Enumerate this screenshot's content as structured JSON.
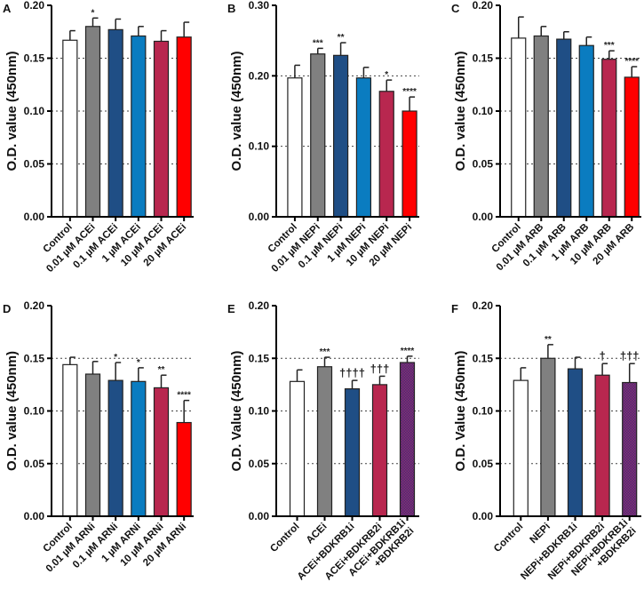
{
  "chart_data": [
    {
      "type": "bar",
      "panel": "A",
      "ylabel": "O.D. value (450nm)",
      "ylim": [
        0,
        0.2
      ],
      "yticks": [
        "0.00",
        "0.05",
        "0.10",
        "0.15",
        "0.20"
      ],
      "grid_at": [
        0.05,
        0.1,
        0.15
      ],
      "categories": [
        "Control",
        "0.01 µM ACEi",
        "0.1 µM ACEi",
        "1 µM ACEi",
        "10 µM ACEi",
        "20 µM ACEi"
      ],
      "values": [
        0.167,
        0.18,
        0.177,
        0.171,
        0.166,
        0.17
      ],
      "error_upper": [
        0.176,
        0.188,
        0.187,
        0.18,
        0.176,
        0.184
      ],
      "annotations": [
        "",
        "*",
        "",
        "",
        "",
        ""
      ]
    },
    {
      "type": "bar",
      "panel": "B",
      "ylabel": "O.D. value (450nm)",
      "ylim": [
        0,
        0.3
      ],
      "yticks": [
        "0.00",
        "0.10",
        "0.20",
        "0.30"
      ],
      "grid_at": [
        0.1,
        0.2
      ],
      "categories": [
        "Control",
        "0.01 µM NEPi",
        "0.1 µM NEPi",
        "1 µM NEPi",
        "10 µM NEPi",
        "20 µM NEPi"
      ],
      "values": [
        0.197,
        0.231,
        0.229,
        0.197,
        0.178,
        0.15
      ],
      "error_upper": [
        0.215,
        0.239,
        0.247,
        0.212,
        0.194,
        0.17
      ],
      "annotations": [
        "",
        "***",
        "**",
        "",
        "*",
        "****"
      ]
    },
    {
      "type": "bar",
      "panel": "C",
      "ylabel": "O.D. value (450nm)",
      "ylim": [
        0,
        0.2
      ],
      "yticks": [
        "0.00",
        "0.05",
        "0.10",
        "0.15",
        "0.20"
      ],
      "grid_at": [
        0.05,
        0.1,
        0.15
      ],
      "categories": [
        "Control",
        "0.01 µM ARB",
        "0.1 µM ARB",
        "1 µM ARB",
        "10 µM ARB",
        "20 µM ARB"
      ],
      "values": [
        0.169,
        0.171,
        0.168,
        0.162,
        0.149,
        0.132
      ],
      "error_upper": [
        0.189,
        0.18,
        0.175,
        0.17,
        0.157,
        0.142
      ],
      "annotations": [
        "",
        "",
        "",
        "",
        "***",
        "****"
      ]
    },
    {
      "type": "bar",
      "panel": "D",
      "ylabel": "O.D. value (450nm)",
      "ylim": [
        0,
        0.2
      ],
      "yticks": [
        "0.00",
        "0.05",
        "0.10",
        "0.15",
        "0.20"
      ],
      "grid_at": [
        0.05,
        0.1,
        0.15
      ],
      "categories": [
        "Control",
        "0.01 µM ARNi",
        "0.1 µM ARNi",
        "1 µM ARNi",
        "10 µM ARNi",
        "20 µM ARNi"
      ],
      "values": [
        0.144,
        0.135,
        0.129,
        0.128,
        0.122,
        0.089
      ],
      "error_upper": [
        0.151,
        0.147,
        0.146,
        0.141,
        0.134,
        0.11
      ],
      "annotations": [
        "",
        "",
        "*",
        "*",
        "**",
        "****"
      ]
    },
    {
      "type": "bar",
      "panel": "E",
      "ylabel": "O.D. Value (450nm)",
      "ylim": [
        0,
        0.2
      ],
      "yticks": [
        "0.00",
        "0.05",
        "0.10",
        "0.15",
        "0.20"
      ],
      "grid_at": [
        0.05,
        0.1,
        0.15
      ],
      "categories": [
        "Control",
        "ACEi",
        "ACEi+BDKRB1i",
        "ACEi+BDKRB2i",
        "ACEi+BDKRB1i\n+BDKRB2i"
      ],
      "values": [
        0.128,
        0.142,
        0.121,
        0.125,
        0.146
      ],
      "error_upper": [
        0.139,
        0.151,
        0.129,
        0.133,
        0.152
      ],
      "annotations": [
        "",
        "***",
        "††††",
        "†††",
        "****"
      ]
    },
    {
      "type": "bar",
      "panel": "F",
      "ylabel": "O.D. Value (450nm)",
      "ylim": [
        0,
        0.2
      ],
      "yticks": [
        "0.00",
        "0.05",
        "0.10",
        "0.15",
        "0.20"
      ],
      "grid_at": [
        0.05,
        0.1,
        0.15
      ],
      "categories": [
        "Control",
        "NEPi",
        "NEPi+BDKRB1i",
        "NEPi+BDKRB2i",
        "NEPi+BDKRB1i\n+BDKRB2i"
      ],
      "values": [
        0.129,
        0.15,
        0.14,
        0.134,
        0.127
      ],
      "error_upper": [
        0.141,
        0.163,
        0.151,
        0.145,
        0.145
      ],
      "annotations": [
        "",
        "**",
        "",
        "†",
        "†††"
      ]
    }
  ],
  "colors": {
    "six_bar": [
      "#ffffff",
      "#808080",
      "#1f4e85",
      "#0a7cc0",
      "#b8274f",
      "#ff0000"
    ],
    "five_bar": [
      "#ffffff",
      "#808080",
      "#1f4e85",
      "#b8274f",
      "hatch:#6a2a6a"
    ]
  }
}
